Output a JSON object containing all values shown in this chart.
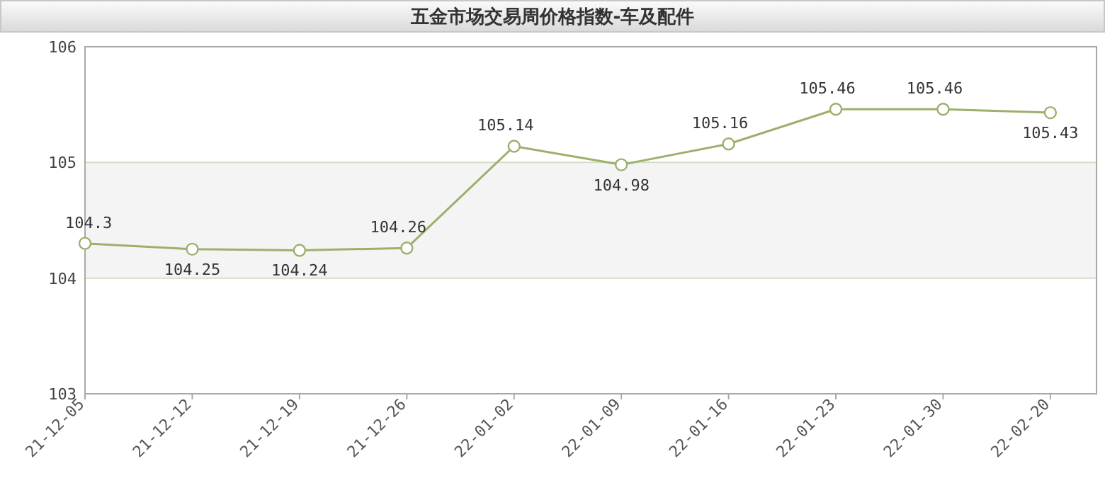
{
  "chart_data": {
    "type": "line",
    "title": "五金市场交易周价格指数-车及配件",
    "categories": [
      "21-12-05",
      "21-12-12",
      "21-12-19",
      "21-12-26",
      "22-01-02",
      "22-01-09",
      "22-01-16",
      "22-01-23",
      "22-01-30",
      "22-02-20"
    ],
    "series": [
      {
        "color": "#9cb06c",
        "values": [
          104.3,
          104.25,
          104.24,
          104.26,
          105.14,
          104.98,
          105.16,
          105.46,
          105.46,
          105.43
        ]
      }
    ],
    "ylim": [
      103,
      106
    ],
    "yticks": [
      103,
      104,
      105,
      106
    ],
    "grid": "y",
    "bands": [
      {
        "axis": "y",
        "from": 104,
        "to": 105,
        "color": "#f4f4f4"
      }
    ],
    "marker": "circle",
    "line_style": "solid",
    "data_labels": true
  }
}
